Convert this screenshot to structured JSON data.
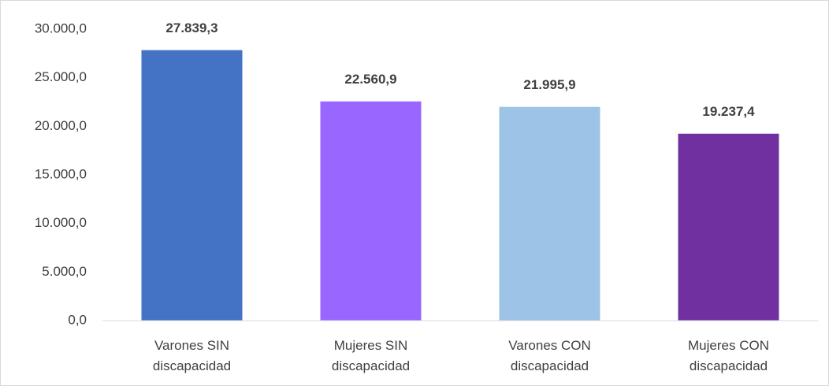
{
  "chart_data": {
    "type": "bar",
    "categories": [
      "Varones SIN discapacidad",
      "Mujeres SIN discapacidad",
      "Varones CON discapacidad",
      "Mujeres CON discapacidad"
    ],
    "values": [
      27839.3,
      22560.9,
      21995.9,
      19237.4
    ],
    "value_labels": [
      "27.839,3",
      "22.560,9",
      "21.995,9",
      "19.237,4"
    ],
    "colors": [
      "#4472c4",
      "#9966ff",
      "#9dc3e6",
      "#7030a0"
    ],
    "ylim": [
      0,
      30000
    ],
    "yticks": [
      {
        "value": 0,
        "label": "0,0"
      },
      {
        "value": 5000,
        "label": "5.000,0"
      },
      {
        "value": 10000,
        "label": "10.000,0"
      },
      {
        "value": 15000,
        "label": "15.000,0"
      },
      {
        "value": 20000,
        "label": "20.000,0"
      },
      {
        "value": 25000,
        "label": "25.000,0"
      },
      {
        "value": 30000,
        "label": "30.000,0"
      }
    ],
    "grid": false
  }
}
